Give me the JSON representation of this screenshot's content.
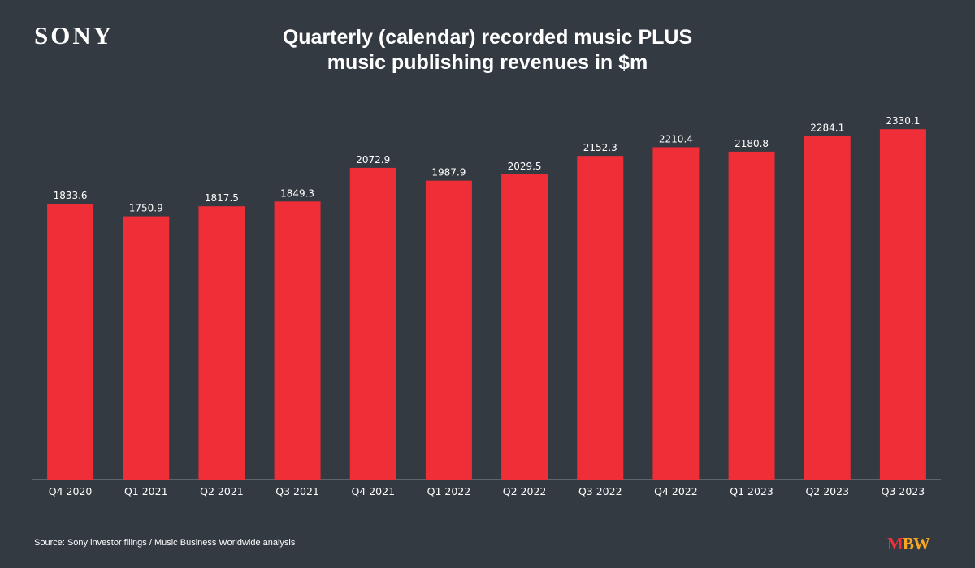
{
  "brand": {
    "logo_text": "SONY"
  },
  "header": {
    "title_line1": "Quarterly (calendar) recorded music PLUS",
    "title_line2": "music publishing revenues in $m"
  },
  "footer": {
    "source": "Source: Sony investor filings / Music Business Worldwide analysis",
    "logo_m": "M",
    "logo_bw": "BW"
  },
  "colors": {
    "background": "#343a42",
    "bar": "#ef2e38",
    "axis": "#8a9096",
    "text": "#ffffff",
    "logo_m": "#ef2e38",
    "logo_bw": "#f5a623"
  },
  "chart_data": {
    "type": "bar",
    "title": "Quarterly (calendar) recorded music PLUS music publishing revenues in $m",
    "categories": [
      "Q4 2020",
      "Q1 2021",
      "Q2 2021",
      "Q3 2021",
      "Q4 2021",
      "Q1 2022",
      "Q2 2022",
      "Q3 2022",
      "Q4 2022",
      "Q1 2023",
      "Q2 2023",
      "Q3 2023"
    ],
    "values": [
      1833.6,
      1750.9,
      1817.5,
      1849.3,
      2072.9,
      1987.9,
      2029.5,
      2152.3,
      2210.4,
      2180.8,
      2284.1,
      2330.1
    ],
    "value_labels": [
      "1833.6",
      "1750.9",
      "1817.5",
      "1849.3",
      "2072.9",
      "1987.9",
      "2029.5",
      "2152.3",
      "2210.4",
      "2180.8",
      "2284.1",
      "2330.1"
    ],
    "ylim": [
      0,
      2450
    ],
    "xlabel": "",
    "ylabel": "",
    "grid": false,
    "legend": "none"
  }
}
